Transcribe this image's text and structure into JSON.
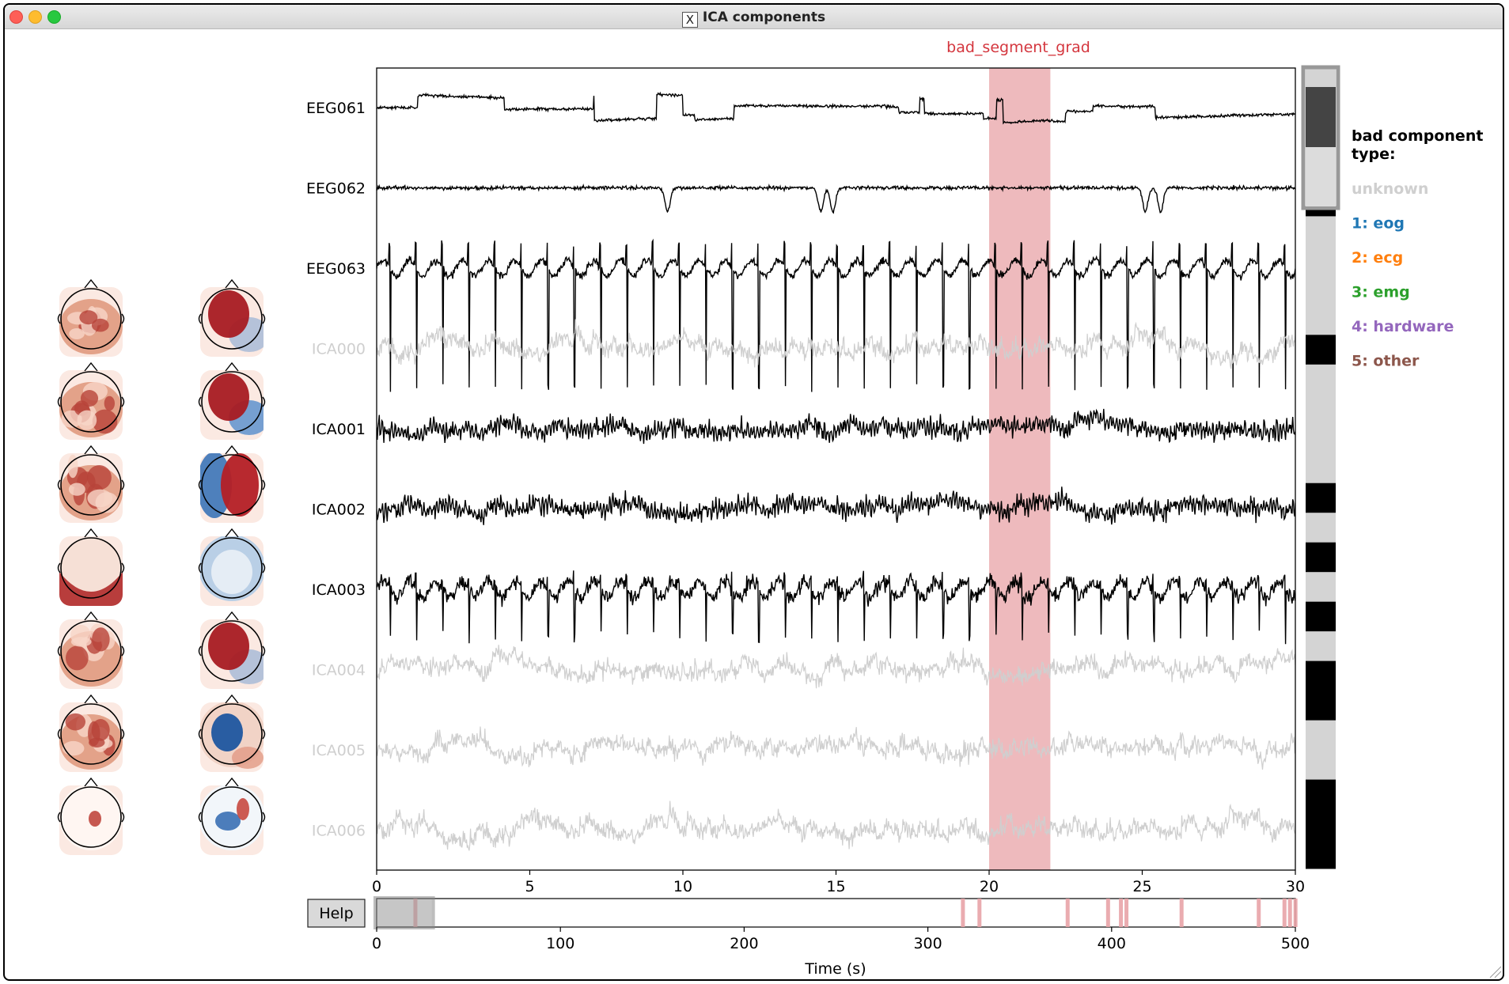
{
  "window": {
    "title": "ICA components"
  },
  "annotation": {
    "label": "bad_segment_grad",
    "start": 20,
    "end": 22,
    "color": "#e8a3a7"
  },
  "channels": [
    {
      "name": "EEG061",
      "bad": false,
      "kind": "step"
    },
    {
      "name": "EEG062",
      "bad": false,
      "kind": "eog"
    },
    {
      "name": "EEG063",
      "bad": false,
      "kind": "ecg"
    },
    {
      "name": "ICA000",
      "bad": true,
      "kind": "noise"
    },
    {
      "name": "ICA001",
      "bad": false,
      "kind": "alpha"
    },
    {
      "name": "ICA002",
      "bad": false,
      "kind": "alpha2"
    },
    {
      "name": "ICA003",
      "bad": false,
      "kind": "ecg2"
    },
    {
      "name": "ICA004",
      "bad": true,
      "kind": "noise"
    },
    {
      "name": "ICA005",
      "bad": true,
      "kind": "noise"
    },
    {
      "name": "ICA006",
      "bad": true,
      "kind": "noise"
    }
  ],
  "main_axis": {
    "xlim": [
      0,
      30
    ],
    "ticks": [
      "0",
      "5",
      "10",
      "15",
      "20",
      "25",
      "30"
    ]
  },
  "overview_axis": {
    "xlim": [
      0,
      500
    ],
    "ticks": [
      "0",
      "100",
      "200",
      "300",
      "400",
      "500"
    ],
    "xlabel": "Time (s)",
    "view_window": [
      0,
      30
    ],
    "annotations": [
      20,
      318,
      327,
      375,
      397,
      404,
      407,
      437,
      479,
      493,
      496,
      499
    ]
  },
  "help_button": {
    "label": "Help"
  },
  "legend": {
    "title_line1": "bad component",
    "title_line2": "type:",
    "items": [
      {
        "label": "unknown",
        "color": "#cfcfcf"
      },
      {
        "label": "1: eog",
        "color": "#1f77b4"
      },
      {
        "label": "2: ecg",
        "color": "#ff7f0e"
      },
      {
        "label": "3: emg",
        "color": "#2ca02c"
      },
      {
        "label": "4: hardware",
        "color": "#9467bd"
      },
      {
        "label": "5: other",
        "color": "#8c564b"
      }
    ]
  },
  "scrollbar": {
    "segments": [
      "gray",
      "gray",
      "black",
      "gray",
      "black",
      "gray",
      "gray",
      "gray",
      "gray",
      "black",
      "gray",
      "gray",
      "gray",
      "gray",
      "black",
      "gray",
      "black",
      "gray",
      "black",
      "gray",
      "black",
      "black",
      "gray",
      "gray",
      "black",
      "black",
      "black"
    ]
  },
  "topomaps": [
    {
      "col": 0,
      "type": "noise"
    },
    {
      "col": 1,
      "type": "dipoleR"
    },
    {
      "col": 0,
      "type": "noise"
    },
    {
      "col": 1,
      "type": "dipoleRB"
    },
    {
      "col": 0,
      "type": "noise"
    },
    {
      "col": 1,
      "type": "split"
    },
    {
      "col": 0,
      "type": "edge"
    },
    {
      "col": 1,
      "type": "blue"
    },
    {
      "col": 0,
      "type": "noise"
    },
    {
      "col": 1,
      "type": "dipoleR2"
    },
    {
      "col": 0,
      "type": "noise2"
    },
    {
      "col": 1,
      "type": "blueDipole"
    },
    {
      "col": 0,
      "type": "focal"
    },
    {
      "col": 1,
      "type": "focalBlue"
    }
  ]
}
